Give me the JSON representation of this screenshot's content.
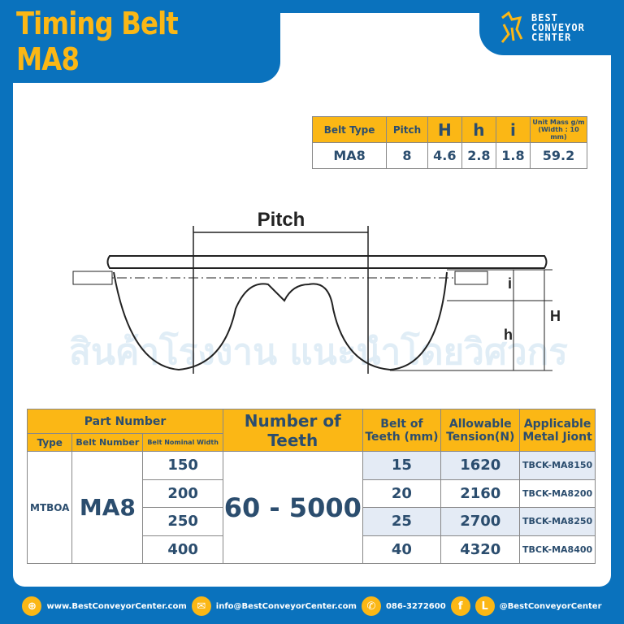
{
  "title": "Timing Belt MA8",
  "logo": {
    "lines": [
      "BEST",
      "CONVEYOR",
      "CENTER"
    ]
  },
  "watermark": "สินค้าโรงงาน แนะนำโดยวิศวกร",
  "spec_table": {
    "headers": [
      "Belt Type",
      "Pitch",
      "H",
      "h",
      "i",
      "Unit Mass g/m (Width : 10 mm)"
    ],
    "row": [
      "MA8",
      "8",
      "4.6",
      "2.8",
      "1.8",
      "59.2"
    ]
  },
  "diagram": {
    "pitch_label": "Pitch",
    "labels": [
      "i",
      "h",
      "H"
    ]
  },
  "main_table": {
    "group_header": "Part Number",
    "headers": {
      "type": "Type",
      "belt_number": "Belt Number",
      "width": "Belt Nominal Width",
      "teeth": "Number of Teeth",
      "belt_teeth": "Belt of Teeth (mm)",
      "tension": "Allowable Tension(N)",
      "joint": "Applicable Metal Jiont"
    },
    "type": "MTBOA",
    "belt_number": "MA8",
    "teeth": "60 - 5000",
    "rows": [
      {
        "width": "150",
        "belt_teeth": "15",
        "tension": "1620",
        "joint": "TBCK-MA8150"
      },
      {
        "width": "200",
        "belt_teeth": "20",
        "tension": "2160",
        "joint": "TBCK-MA8200"
      },
      {
        "width": "250",
        "belt_teeth": "25",
        "tension": "2700",
        "joint": "TBCK-MA8250"
      },
      {
        "width": "400",
        "belt_teeth": "40",
        "tension": "4320",
        "joint": "TBCK-MA8400"
      }
    ]
  },
  "footer": {
    "website": "www.BestConveyorCenter.com",
    "email": "info@BestConveyorCenter.com",
    "phone": "086-3272600",
    "social": "@BestConveyorCenter",
    "fb": "f",
    "line": "L"
  },
  "colors": {
    "blue": "#0a72bd",
    "yellow": "#fbb715",
    "text": "#2b4d6e"
  }
}
